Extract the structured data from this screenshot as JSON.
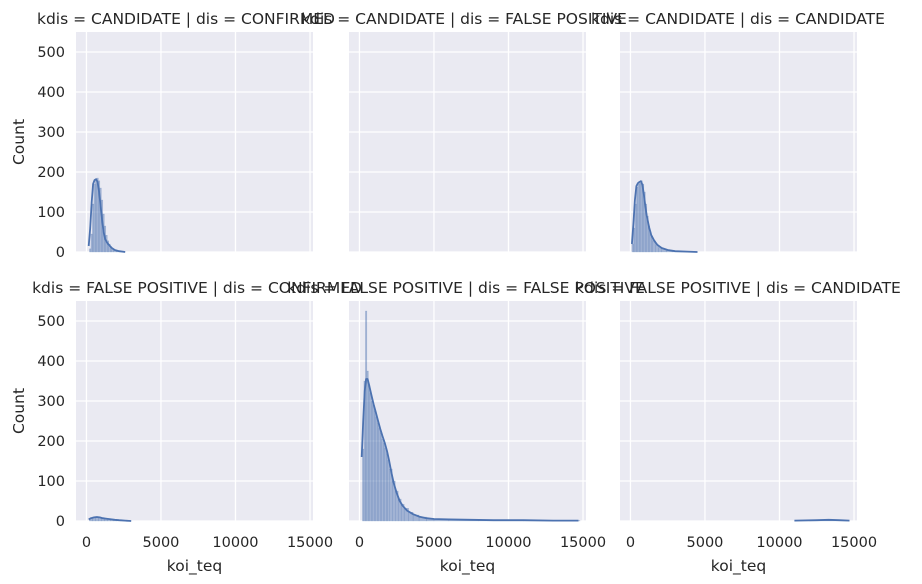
{
  "chart_data": {
    "type": "histogram-facet-grid",
    "style": "seaborn darkgrid",
    "colors": {
      "panel_bg": "#eaeaf2",
      "grid": "#ffffff",
      "bar_fill": "#4c72b0",
      "kde_line": "#4c72b0",
      "text": "#262626"
    },
    "grid": true,
    "xlabel": "koi_teq",
    "ylabel": "Count",
    "xlim": [
      -700,
      15200
    ],
    "ylim": [
      0,
      550
    ],
    "xticks": [
      0,
      5000,
      10000,
      15000
    ],
    "yticks": [
      0,
      100,
      200,
      300,
      400,
      500
    ],
    "panels": [
      {
        "title": "kdis = CANDIDATE | dis = CONFIRMED",
        "bins": [
          [
            200,
            300,
            8
          ],
          [
            300,
            400,
            45
          ],
          [
            400,
            500,
            120
          ],
          [
            500,
            600,
            170
          ],
          [
            600,
            700,
            182
          ],
          [
            700,
            800,
            185
          ],
          [
            800,
            900,
            178
          ],
          [
            900,
            1000,
            160
          ],
          [
            1000,
            1100,
            130
          ],
          [
            1100,
            1200,
            95
          ],
          [
            1200,
            1300,
            65
          ],
          [
            1300,
            1400,
            42
          ],
          [
            1400,
            1500,
            28
          ],
          [
            1500,
            1600,
            20
          ],
          [
            1600,
            1700,
            13
          ],
          [
            1700,
            1800,
            8
          ],
          [
            1800,
            2000,
            5
          ],
          [
            2000,
            2300,
            2
          ]
        ],
        "kde": [
          [
            150,
            15
          ],
          [
            250,
            60
          ],
          [
            350,
            125
          ],
          [
            450,
            170
          ],
          [
            550,
            180
          ],
          [
            650,
            182
          ],
          [
            750,
            175
          ],
          [
            850,
            150
          ],
          [
            950,
            115
          ],
          [
            1050,
            80
          ],
          [
            1150,
            50
          ],
          [
            1250,
            33
          ],
          [
            1350,
            25
          ],
          [
            1500,
            18
          ],
          [
            1700,
            10
          ],
          [
            1900,
            5
          ],
          [
            2200,
            2
          ],
          [
            2600,
            0
          ]
        ]
      },
      {
        "title": "kdis = CANDIDATE | dis = FALSE POSITIVE",
        "bins": [],
        "kde": []
      },
      {
        "title": "kdis = CANDIDATE | dis = CANDIDATE",
        "bins": [
          [
            100,
            200,
            20
          ],
          [
            200,
            300,
            60
          ],
          [
            300,
            400,
            120
          ],
          [
            400,
            500,
            162
          ],
          [
            500,
            600,
            170
          ],
          [
            600,
            700,
            172
          ],
          [
            700,
            800,
            178
          ],
          [
            800,
            900,
            170
          ],
          [
            900,
            1000,
            150
          ],
          [
            1000,
            1100,
            120
          ],
          [
            1100,
            1200,
            90
          ],
          [
            1200,
            1300,
            65
          ],
          [
            1300,
            1400,
            50
          ],
          [
            1400,
            1500,
            40
          ],
          [
            1500,
            1700,
            28
          ],
          [
            1700,
            1900,
            18
          ],
          [
            1900,
            2100,
            11
          ],
          [
            2100,
            2400,
            7
          ],
          [
            2400,
            2800,
            4
          ],
          [
            2800,
            3400,
            2
          ],
          [
            3400,
            4200,
            1
          ]
        ],
        "kde": [
          [
            100,
            20
          ],
          [
            200,
            70
          ],
          [
            300,
            130
          ],
          [
            400,
            165
          ],
          [
            500,
            172
          ],
          [
            600,
            175
          ],
          [
            700,
            177
          ],
          [
            800,
            168
          ],
          [
            900,
            145
          ],
          [
            1000,
            115
          ],
          [
            1100,
            90
          ],
          [
            1250,
            62
          ],
          [
            1400,
            42
          ],
          [
            1600,
            28
          ],
          [
            1800,
            18
          ],
          [
            2100,
            10
          ],
          [
            2500,
            5
          ],
          [
            3000,
            2
          ],
          [
            3800,
            1
          ],
          [
            4500,
            0
          ]
        ]
      },
      {
        "title": "kdis = FALSE POSITIVE | dis = CONFIRMED",
        "bins": [
          [
            200,
            400,
            6
          ],
          [
            400,
            600,
            9
          ],
          [
            600,
            800,
            10
          ],
          [
            800,
            1000,
            9
          ],
          [
            1000,
            1200,
            7
          ],
          [
            1200,
            1400,
            6
          ],
          [
            1400,
            1600,
            5
          ],
          [
            1600,
            1800,
            4
          ],
          [
            1800,
            2000,
            3
          ],
          [
            2000,
            2300,
            2
          ],
          [
            2300,
            2700,
            1
          ]
        ],
        "kde": [
          [
            150,
            4
          ],
          [
            300,
            7
          ],
          [
            500,
            9
          ],
          [
            700,
            10
          ],
          [
            900,
            9
          ],
          [
            1100,
            7
          ],
          [
            1300,
            6
          ],
          [
            1500,
            5
          ],
          [
            1700,
            4
          ],
          [
            1900,
            3
          ],
          [
            2200,
            2
          ],
          [
            2600,
            1
          ],
          [
            3000,
            0
          ]
        ]
      },
      {
        "title": "kdis = FALSE POSITIVE | dis = FALSE POSITIVE",
        "bins": [
          [
            200,
            300,
            180
          ],
          [
            300,
            400,
            350
          ],
          [
            400,
            500,
            525
          ],
          [
            500,
            600,
            375
          ],
          [
            600,
            700,
            340
          ],
          [
            700,
            800,
            320
          ],
          [
            800,
            900,
            300
          ],
          [
            900,
            1000,
            290
          ],
          [
            1000,
            1100,
            275
          ],
          [
            1100,
            1200,
            260
          ],
          [
            1200,
            1300,
            245
          ],
          [
            1300,
            1400,
            232
          ],
          [
            1400,
            1500,
            220
          ],
          [
            1500,
            1600,
            205
          ],
          [
            1600,
            1700,
            195
          ],
          [
            1700,
            1800,
            182
          ],
          [
            1800,
            1900,
            168
          ],
          [
            1900,
            2000,
            152
          ],
          [
            2000,
            2200,
            130
          ],
          [
            2200,
            2400,
            100
          ],
          [
            2400,
            2600,
            75
          ],
          [
            2600,
            2800,
            55
          ],
          [
            2800,
            3000,
            42
          ],
          [
            3000,
            3300,
            32
          ],
          [
            3300,
            3600,
            22
          ],
          [
            3600,
            4000,
            15
          ],
          [
            4000,
            4500,
            10
          ],
          [
            4500,
            5000,
            6
          ],
          [
            5000,
            6000,
            4
          ],
          [
            6000,
            8000,
            3
          ],
          [
            8000,
            11000,
            2
          ],
          [
            11000,
            14800,
            1
          ]
        ],
        "kde": [
          [
            150,
            160
          ],
          [
            250,
            250
          ],
          [
            350,
            325
          ],
          [
            450,
            355
          ],
          [
            550,
            355
          ],
          [
            650,
            340
          ],
          [
            800,
            315
          ],
          [
            950,
            292
          ],
          [
            1100,
            272
          ],
          [
            1250,
            250
          ],
          [
            1400,
            230
          ],
          [
            1550,
            212
          ],
          [
            1700,
            195
          ],
          [
            1850,
            175
          ],
          [
            2000,
            150
          ],
          [
            2150,
            120
          ],
          [
            2300,
            95
          ],
          [
            2500,
            70
          ],
          [
            2700,
            50
          ],
          [
            2900,
            38
          ],
          [
            3200,
            26
          ],
          [
            3600,
            17
          ],
          [
            4000,
            11
          ],
          [
            4500,
            7
          ],
          [
            5000,
            5
          ],
          [
            6000,
            4
          ],
          [
            7500,
            3
          ],
          [
            9000,
            2
          ],
          [
            11000,
            2
          ],
          [
            13000,
            1
          ],
          [
            14700,
            1
          ]
        ]
      },
      {
        "title": "kdis = FALSE POSITIVE | dis = CANDIDATE",
        "bins": [
          [
            12000,
            14500,
            1
          ]
        ],
        "kde": [
          [
            11000,
            1
          ],
          [
            12500,
            2
          ],
          [
            13300,
            3
          ],
          [
            14000,
            2
          ],
          [
            14700,
            1
          ]
        ]
      }
    ]
  }
}
